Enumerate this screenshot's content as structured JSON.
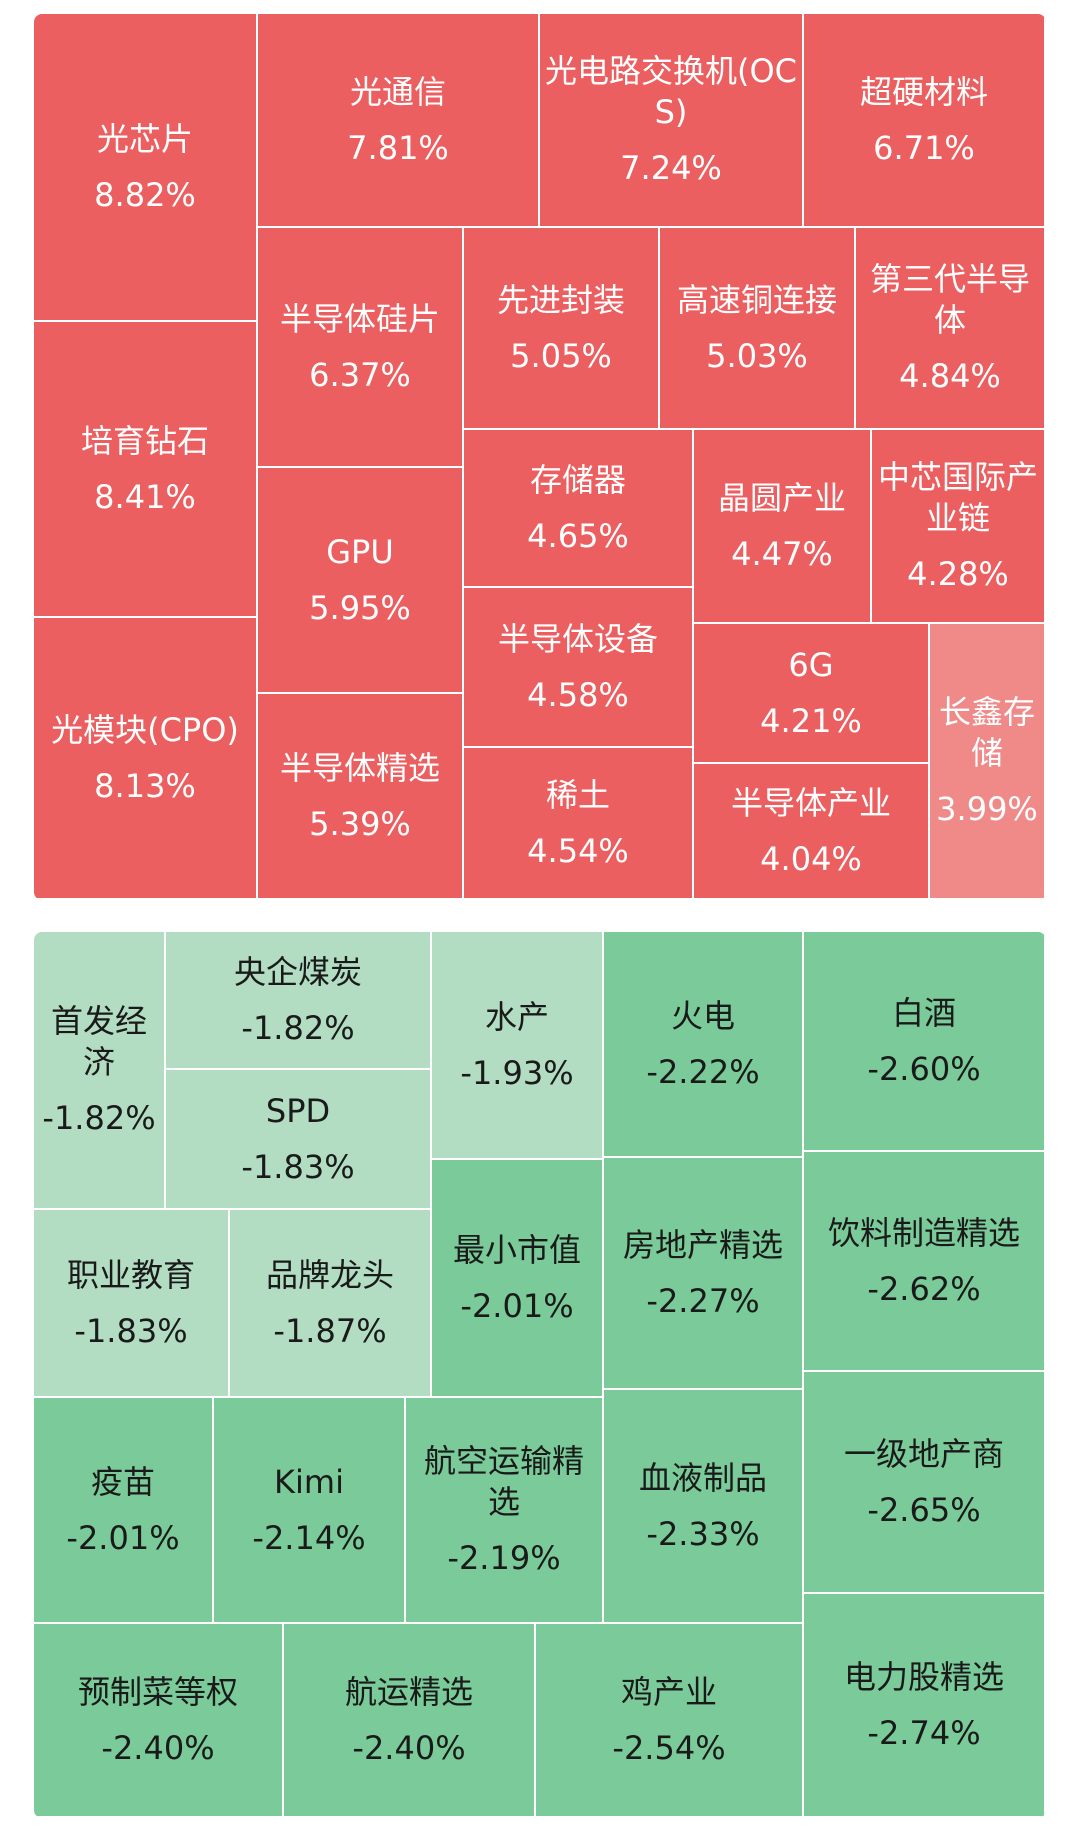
{
  "colors": {
    "up": "#ec5f60",
    "up_light": "#ef8a89",
    "down": "#7acb99",
    "down_light": "#b2ddc3",
    "text_up": "#ffffff",
    "text_down": "#1a1a1a"
  },
  "chart_data": [
    {
      "type": "treemap",
      "sectors": [
        {
          "name": "光芯片",
          "change": "8.82%"
        },
        {
          "name": "培育钻石",
          "change": "8.41%"
        },
        {
          "name": "光模块(CPO)",
          "change": "8.13%"
        },
        {
          "name": "光通信",
          "change": "7.81%"
        },
        {
          "name": "光电路交换机(OCS)",
          "change": "7.24%"
        },
        {
          "name": "超硬材料",
          "change": "6.71%"
        },
        {
          "name": "半导体硅片",
          "change": "6.37%"
        },
        {
          "name": "GPU",
          "change": "5.95%"
        },
        {
          "name": "半导体精选",
          "change": "5.39%"
        },
        {
          "name": "先进封装",
          "change": "5.05%"
        },
        {
          "name": "高速铜连接",
          "change": "5.03%"
        },
        {
          "name": "第三代半导体",
          "change": "4.84%"
        },
        {
          "name": "存储器",
          "change": "4.65%"
        },
        {
          "name": "半导体设备",
          "change": "4.58%"
        },
        {
          "name": "稀土",
          "change": "4.54%"
        },
        {
          "name": "晶圆产业",
          "change": "4.47%"
        },
        {
          "name": "中芯国际产业链",
          "change": "4.28%"
        },
        {
          "name": "6G",
          "change": "4.21%"
        },
        {
          "name": "半导体产业",
          "change": "4.04%"
        },
        {
          "name": "长鑫存储",
          "change": "3.99%"
        }
      ]
    },
    {
      "type": "treemap",
      "sectors": [
        {
          "name": "首发经济",
          "change": "-1.82%"
        },
        {
          "name": "央企煤炭",
          "change": "-1.82%"
        },
        {
          "name": "SPD",
          "change": "-1.83%"
        },
        {
          "name": "职业教育",
          "change": "-1.83%"
        },
        {
          "name": "品牌龙头",
          "change": "-1.87%"
        },
        {
          "name": "水产",
          "change": "-1.93%"
        },
        {
          "name": "最小市值",
          "change": "-2.01%"
        },
        {
          "name": "疫苗",
          "change": "-2.01%"
        },
        {
          "name": "Kimi",
          "change": "-2.14%"
        },
        {
          "name": "航空运输精选",
          "change": "-2.19%"
        },
        {
          "name": "火电",
          "change": "-2.22%"
        },
        {
          "name": "房地产精选",
          "change": "-2.27%"
        },
        {
          "name": "血液制品",
          "change": "-2.33%"
        },
        {
          "name": "预制菜等权",
          "change": "-2.40%"
        },
        {
          "name": "航运精选",
          "change": "-2.40%"
        },
        {
          "name": "鸡产业",
          "change": "-2.54%"
        },
        {
          "name": "白酒",
          "change": "-2.60%"
        },
        {
          "name": "饮料制造精选",
          "change": "-2.62%"
        },
        {
          "name": "一级地产商",
          "change": "-2.65%"
        },
        {
          "name": "电力股精选",
          "change": "-2.74%"
        }
      ]
    }
  ]
}
